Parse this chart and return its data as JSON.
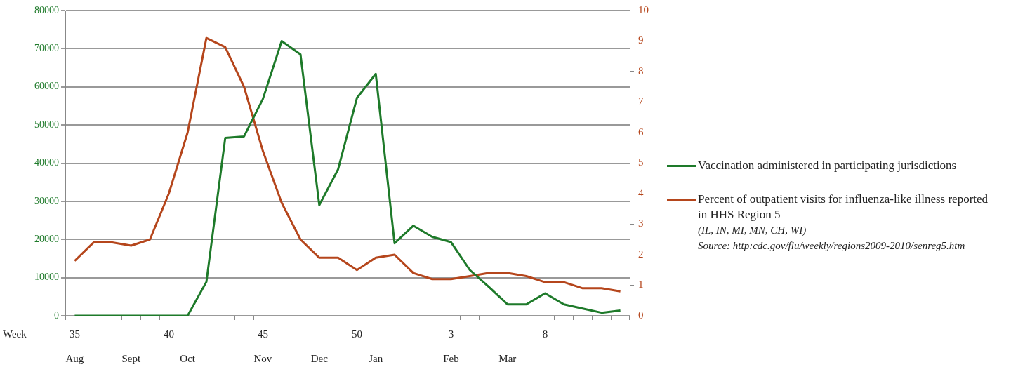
{
  "chart_data": {
    "type": "line",
    "categories": [
      "35\nAug",
      null,
      null,
      "\nSept",
      null,
      "40",
      "\nOct",
      null,
      null,
      null,
      "45\nNov",
      null,
      null,
      "\nDec",
      null,
      "50",
      "\nJan",
      null,
      null,
      null,
      "3\nFeb",
      null,
      null,
      "\nMar",
      null,
      "8",
      null,
      null,
      null,
      null
    ],
    "series": [
      {
        "name": "Vaccination administered in participating jurisdictions",
        "color": "#1e7a2a",
        "values": [
          0,
          0,
          0,
          0,
          0,
          0,
          0,
          8900,
          46600,
          47000,
          56800,
          72000,
          68500,
          29000,
          38400,
          57100,
          63400,
          19000,
          23600,
          20700,
          19300,
          12000,
          7600,
          3000,
          3000,
          5900,
          3000,
          1900,
          800,
          1400
        ]
      },
      {
        "name": "Percent of outpatient visits for influenza-like illness reported in HHS Region 5",
        "color": "#b5461c",
        "axis": "y2",
        "values": [
          1.8,
          2.4,
          2.4,
          2.3,
          2.5,
          4.0,
          6.0,
          9.1,
          8.8,
          7.5,
          5.4,
          3.7,
          2.5,
          1.9,
          1.9,
          1.5,
          1.9,
          2.0,
          1.4,
          1.2,
          1.2,
          1.3,
          1.4,
          1.4,
          1.3,
          1.1,
          1.1,
          0.9,
          0.9,
          0.8
        ]
      }
    ],
    "ylim": [
      0,
      80000
    ],
    "yticks": [
      0,
      10000,
      20000,
      30000,
      40000,
      50000,
      60000,
      70000,
      80000
    ],
    "y2lim": [
      0,
      10
    ],
    "y2ticks": [
      0,
      1,
      2,
      3,
      4,
      5,
      6,
      7,
      8,
      9,
      10
    ],
    "grid": "y",
    "legend": "right",
    "marker": "none",
    "line_style": "solid",
    "annotations": [
      "Week",
      "(IL, IN, MI, MN, CH, WI)",
      "Source: http:cdc.gov/flu/weekly/regions2009-2010/senreg5.htm"
    ]
  }
}
